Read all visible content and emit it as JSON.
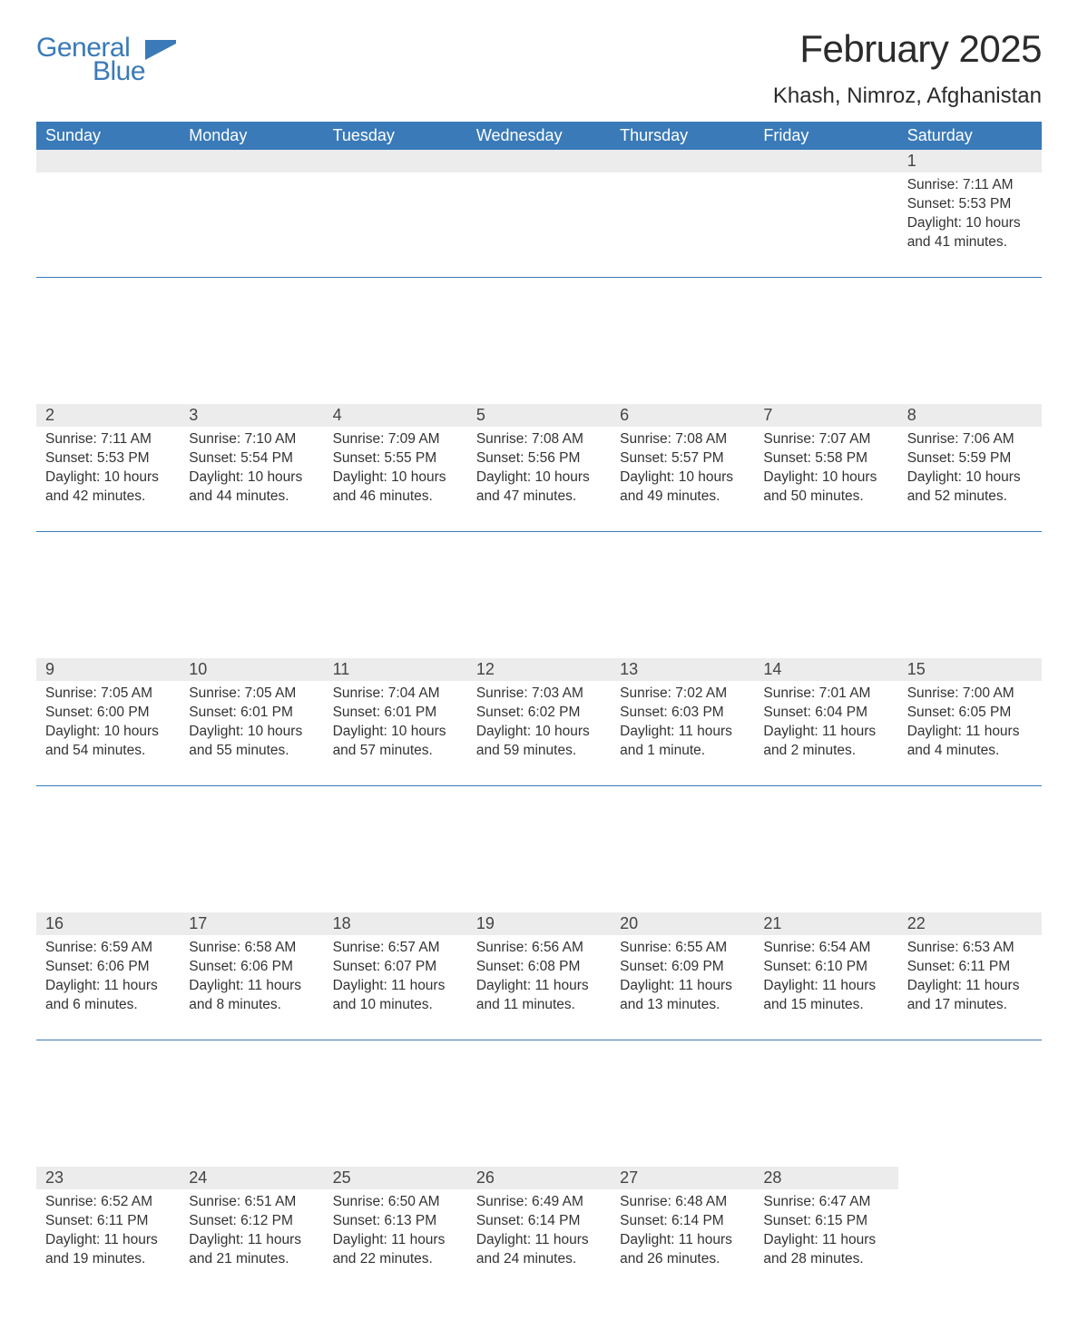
{
  "brand": {
    "word1": "General",
    "word2": "Blue",
    "flag_color": "#3a7ab8"
  },
  "title": "February 2025",
  "location": "Khash, Nimroz, Afghanistan",
  "colors": {
    "header_bg": "#3a7ab8",
    "header_text": "#ffffff",
    "daynum_bg": "#ececec",
    "text": "#333333",
    "rule": "#3a7ab8",
    "page_bg": "#ffffff"
  },
  "fonts": {
    "title_pt": 42,
    "location_pt": 24,
    "th_pt": 18,
    "daynum_pt": 18,
    "body_pt": 15.5
  },
  "weekdays": [
    "Sunday",
    "Monday",
    "Tuesday",
    "Wednesday",
    "Thursday",
    "Friday",
    "Saturday"
  ],
  "labels": {
    "sunrise": "Sunrise:",
    "sunset": "Sunset:",
    "daylight": "Daylight:"
  },
  "weeks": [
    [
      null,
      null,
      null,
      null,
      null,
      null,
      {
        "n": 1,
        "sr": "7:11 AM",
        "ss": "5:53 PM",
        "dl": "10 hours and 41 minutes."
      }
    ],
    [
      {
        "n": 2,
        "sr": "7:11 AM",
        "ss": "5:53 PM",
        "dl": "10 hours and 42 minutes."
      },
      {
        "n": 3,
        "sr": "7:10 AM",
        "ss": "5:54 PM",
        "dl": "10 hours and 44 minutes."
      },
      {
        "n": 4,
        "sr": "7:09 AM",
        "ss": "5:55 PM",
        "dl": "10 hours and 46 minutes."
      },
      {
        "n": 5,
        "sr": "7:08 AM",
        "ss": "5:56 PM",
        "dl": "10 hours and 47 minutes."
      },
      {
        "n": 6,
        "sr": "7:08 AM",
        "ss": "5:57 PM",
        "dl": "10 hours and 49 minutes."
      },
      {
        "n": 7,
        "sr": "7:07 AM",
        "ss": "5:58 PM",
        "dl": "10 hours and 50 minutes."
      },
      {
        "n": 8,
        "sr": "7:06 AM",
        "ss": "5:59 PM",
        "dl": "10 hours and 52 minutes."
      }
    ],
    [
      {
        "n": 9,
        "sr": "7:05 AM",
        "ss": "6:00 PM",
        "dl": "10 hours and 54 minutes."
      },
      {
        "n": 10,
        "sr": "7:05 AM",
        "ss": "6:01 PM",
        "dl": "10 hours and 55 minutes."
      },
      {
        "n": 11,
        "sr": "7:04 AM",
        "ss": "6:01 PM",
        "dl": "10 hours and 57 minutes."
      },
      {
        "n": 12,
        "sr": "7:03 AM",
        "ss": "6:02 PM",
        "dl": "10 hours and 59 minutes."
      },
      {
        "n": 13,
        "sr": "7:02 AM",
        "ss": "6:03 PM",
        "dl": "11 hours and 1 minute."
      },
      {
        "n": 14,
        "sr": "7:01 AM",
        "ss": "6:04 PM",
        "dl": "11 hours and 2 minutes."
      },
      {
        "n": 15,
        "sr": "7:00 AM",
        "ss": "6:05 PM",
        "dl": "11 hours and 4 minutes."
      }
    ],
    [
      {
        "n": 16,
        "sr": "6:59 AM",
        "ss": "6:06 PM",
        "dl": "11 hours and 6 minutes."
      },
      {
        "n": 17,
        "sr": "6:58 AM",
        "ss": "6:06 PM",
        "dl": "11 hours and 8 minutes."
      },
      {
        "n": 18,
        "sr": "6:57 AM",
        "ss": "6:07 PM",
        "dl": "11 hours and 10 minutes."
      },
      {
        "n": 19,
        "sr": "6:56 AM",
        "ss": "6:08 PM",
        "dl": "11 hours and 11 minutes."
      },
      {
        "n": 20,
        "sr": "6:55 AM",
        "ss": "6:09 PM",
        "dl": "11 hours and 13 minutes."
      },
      {
        "n": 21,
        "sr": "6:54 AM",
        "ss": "6:10 PM",
        "dl": "11 hours and 15 minutes."
      },
      {
        "n": 22,
        "sr": "6:53 AM",
        "ss": "6:11 PM",
        "dl": "11 hours and 17 minutes."
      }
    ],
    [
      {
        "n": 23,
        "sr": "6:52 AM",
        "ss": "6:11 PM",
        "dl": "11 hours and 19 minutes."
      },
      {
        "n": 24,
        "sr": "6:51 AM",
        "ss": "6:12 PM",
        "dl": "11 hours and 21 minutes."
      },
      {
        "n": 25,
        "sr": "6:50 AM",
        "ss": "6:13 PM",
        "dl": "11 hours and 22 minutes."
      },
      {
        "n": 26,
        "sr": "6:49 AM",
        "ss": "6:14 PM",
        "dl": "11 hours and 24 minutes."
      },
      {
        "n": 27,
        "sr": "6:48 AM",
        "ss": "6:14 PM",
        "dl": "11 hours and 26 minutes."
      },
      {
        "n": 28,
        "sr": "6:47 AM",
        "ss": "6:15 PM",
        "dl": "11 hours and 28 minutes."
      },
      null
    ]
  ]
}
